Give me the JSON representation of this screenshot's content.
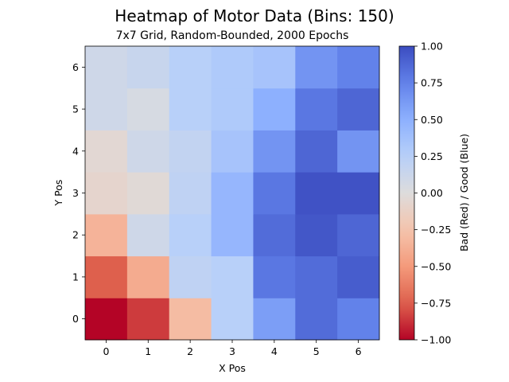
{
  "chart_data": {
    "type": "heatmap",
    "title": "Heatmap of Motor Data (Bins: 150)",
    "subtitle": "7x7 Grid, Random-Bounded, 2000 Epochs",
    "xlabel": "X Pos",
    "ylabel": "Y Pos",
    "x": [
      0,
      1,
      2,
      3,
      4,
      5,
      6
    ],
    "y": [
      0,
      1,
      2,
      3,
      4,
      5,
      6
    ],
    "x_tick_labels": [
      "0",
      "1",
      "2",
      "3",
      "4",
      "5",
      "6"
    ],
    "y_tick_labels": [
      "0",
      "1",
      "2",
      "3",
      "4",
      "5",
      "6"
    ],
    "values": [
      [
        -1.0,
        -0.85,
        -0.3,
        0.25,
        0.6,
        0.85,
        0.75
      ],
      [
        -0.75,
        -0.4,
        0.2,
        0.25,
        0.8,
        0.85,
        0.92
      ],
      [
        -0.35,
        0.1,
        0.25,
        0.45,
        0.85,
        0.95,
        0.88
      ],
      [
        -0.08,
        -0.03,
        0.2,
        0.45,
        0.8,
        0.97,
        0.97
      ],
      [
        -0.05,
        0.1,
        0.18,
        0.35,
        0.65,
        0.88,
        0.65
      ],
      [
        0.1,
        0.05,
        0.25,
        0.3,
        0.5,
        0.8,
        0.88
      ],
      [
        0.1,
        0.15,
        0.25,
        0.3,
        0.35,
        0.65,
        0.75
      ]
    ],
    "colormap": "coolwarm",
    "vmin": -1.0,
    "vmax": 1.0,
    "colorbar": {
      "label": "Bad (Red)     /     Good (Blue)",
      "ticks": [
        -1.0,
        -0.75,
        -0.5,
        -0.25,
        0.0,
        0.25,
        0.5,
        0.75,
        1.0
      ],
      "tick_labels": [
        "−1.00",
        "−0.75",
        "−0.50",
        "−0.25",
        "0.00",
        "0.25",
        "0.50",
        "0.75",
        "1.00"
      ]
    },
    "colors": {
      "min": "#b40426",
      "mid": "#dddcdc",
      "max": "#3b4cc0"
    }
  }
}
